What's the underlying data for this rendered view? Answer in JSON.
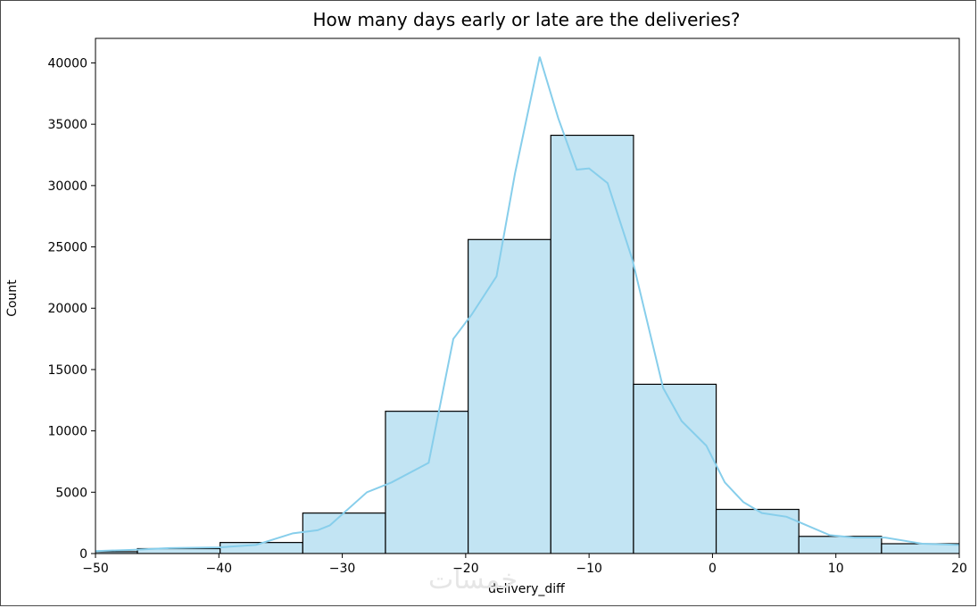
{
  "chart_data": {
    "type": "histogram",
    "title": "How many days early or late are the deliveries?",
    "xlabel": "delivery_diff",
    "ylabel": "Count",
    "xlim": [
      -50,
      20
    ],
    "ylim": [
      0,
      42000
    ],
    "x_ticks": [
      -50,
      -40,
      -30,
      -20,
      -10,
      0,
      10,
      20
    ],
    "x_tick_labels": [
      "−50",
      "−40",
      "−30",
      "−20",
      "−10",
      "0",
      "10",
      "20"
    ],
    "y_ticks": [
      0,
      5000,
      10000,
      15000,
      20000,
      25000,
      30000,
      35000,
      40000
    ],
    "y_tick_labels": [
      "0",
      "5000",
      "10000",
      "15000",
      "20000",
      "25000",
      "30000",
      "35000",
      "40000"
    ],
    "bins": [
      {
        "start": -53.3,
        "end": -46.6,
        "count": 150
      },
      {
        "start": -46.6,
        "end": -39.9,
        "count": 400
      },
      {
        "start": -39.9,
        "end": -33.2,
        "count": 900
      },
      {
        "start": -33.2,
        "end": -26.5,
        "count": 3300
      },
      {
        "start": -26.5,
        "end": -19.8,
        "count": 11600
      },
      {
        "start": -19.8,
        "end": -13.1,
        "count": 25600
      },
      {
        "start": -13.1,
        "end": -6.4,
        "count": 34100
      },
      {
        "start": -6.4,
        "end": 0.3,
        "count": 13800
      },
      {
        "start": 0.3,
        "end": 7.0,
        "count": 3600
      },
      {
        "start": 7.0,
        "end": 13.7,
        "count": 1400
      },
      {
        "start": 13.7,
        "end": 20.4,
        "count": 800
      }
    ],
    "kde": {
      "x": [
        -50,
        -47,
        -44,
        -40,
        -37,
        -34,
        -32,
        -31,
        -28,
        -26,
        -23,
        -21,
        -19.5,
        -17.5,
        -16,
        -14,
        -12.5,
        -11,
        -10,
        -8.5,
        -6.5,
        -4,
        -2.5,
        -0.5,
        1,
        2.5,
        4,
        6,
        9.5,
        11.5,
        14,
        17,
        20
      ],
      "y": [
        200,
        300,
        450,
        500,
        700,
        1650,
        1900,
        2300,
        5000,
        5800,
        7400,
        17500,
        19500,
        22600,
        31000,
        40500,
        35500,
        31300,
        31400,
        30200,
        24000,
        13500,
        10800,
        8800,
        5800,
        4200,
        3300,
        3000,
        1500,
        1300,
        1300,
        800,
        700
      ]
    },
    "bar_color": "#c2e4f3",
    "bar_edge_color": "#000000",
    "line_color": "#87ceeb",
    "grid": false
  },
  "watermark_text": "خمسات"
}
